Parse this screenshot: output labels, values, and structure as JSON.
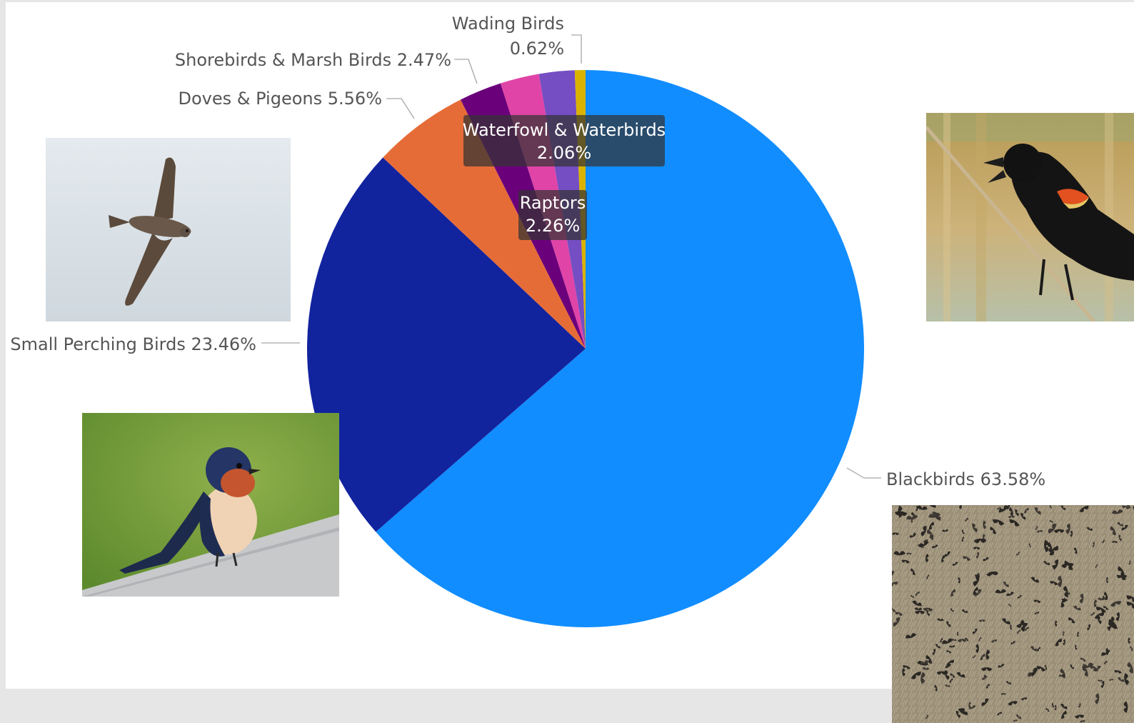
{
  "colors": {
    "page_background": "#e6e6e6",
    "canvas_background": "#ffffff",
    "label_text": "#555555",
    "leader_line": "#a6a6a6",
    "tooltip_background": "#333333"
  },
  "chart_data": {
    "type": "pie",
    "title": "",
    "legend": "none",
    "slices": [
      {
        "label": "Blackbirds",
        "value": 63.58,
        "value_label": "63.58%",
        "color": "#118DFF",
        "label_style": "outside"
      },
      {
        "label": "Small Perching Birds",
        "value": 23.46,
        "value_label": "23.46%",
        "color": "#12239E",
        "label_style": "outside"
      },
      {
        "label": "Doves & Pigeons",
        "value": 5.56,
        "value_label": "5.56%",
        "color": "#E66C37",
        "label_style": "outside"
      },
      {
        "label": "Shorebirds & Marsh Birds",
        "value": 2.47,
        "value_label": "2.47%",
        "color": "#6B007B",
        "label_style": "outside"
      },
      {
        "label": "Raptors",
        "value": 2.26,
        "value_label": "2.26%",
        "color": "#E044A7",
        "label_style": "inside"
      },
      {
        "label": "Waterfowl & Waterbirds",
        "value": 2.06,
        "value_label": "2.06%",
        "color": "#744EC2",
        "label_style": "inside"
      },
      {
        "label": "Wading Birds",
        "value": 0.62,
        "value_label": "0.62%",
        "color": "#D9B300",
        "label_style": "outside"
      }
    ]
  },
  "photos": [
    {
      "name": "chimney-swift-photo",
      "subject": "swift in flight against pale sky"
    },
    {
      "name": "red-winged-blackbird-photo",
      "subject": "red-winged blackbird singing on a reed"
    },
    {
      "name": "barn-swallow-photo",
      "subject": "barn swallow perched on a wooden rail"
    },
    {
      "name": "blackbird-flock-photo",
      "subject": "large flock of blackbirds over dry grass"
    }
  ]
}
